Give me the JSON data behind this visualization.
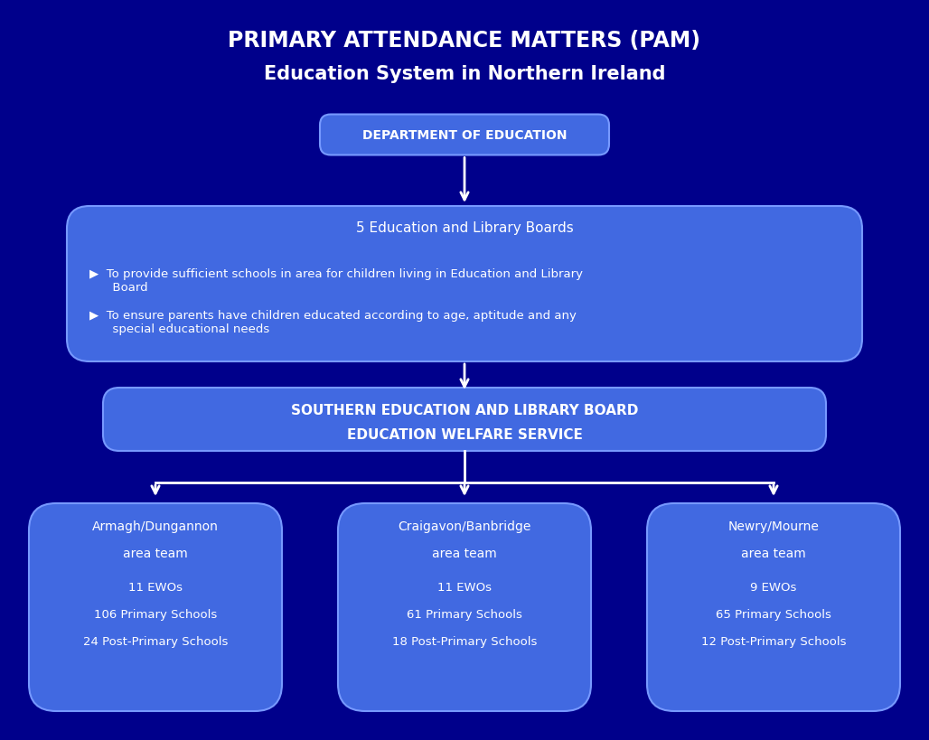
{
  "title_line1": "PRIMARY ATTENDANCE MATTERS (PAM)",
  "title_line2": "Education System in Northern Ireland",
  "bg_color": "#00008B",
  "box_color_dept": "#4169E1",
  "box_color_main": "#4169E1",
  "box_color_selb": "#4169E1",
  "box_color_teams": "#4169E1",
  "text_color": "#FFFFFF",
  "arrow_color": "#FFFFFF",
  "dept_text": "DEPARTMENT OF EDUCATION",
  "elb_title": "5 Education and Library Boards",
  "elb_bullet1": "▶  To provide sufficient schools in area for children living in Education and Library\n     Board",
  "elb_bullet2": "▶  To ensure parents have children educated according to age, aptitude and any\n     special educational needs",
  "selb_text": "SOUTHERN EDUCATION AND LIBRARY BOARD\nEDUCATION WELFARE SERVICE",
  "team1_text": "Armagh/Dungannon\narea team\n\n11 EWOs\n106 Primary Schools\n24 Post-Primary Schools",
  "team2_text": "Craigavon/Banbridge\narea team\n\n11 EWOs\n61 Primary Schools\n18 Post-Primary Schools",
  "team3_text": "Newry/Mourne\narea team\n\n9 EWOs\n65 Primary Schools\n12 Post-Primary Schools"
}
